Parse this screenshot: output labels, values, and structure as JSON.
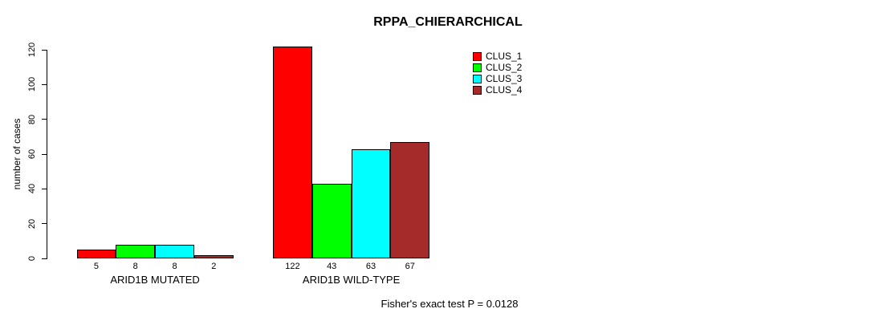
{
  "chart_data": {
    "type": "bar",
    "title": "RPPA_CHIERARCHICAL",
    "xlabel": "",
    "ylabel": "number of cases",
    "categories": [
      "ARID1B MUTATED",
      "ARID1B WILD-TYPE"
    ],
    "series": [
      {
        "name": "CLUS_1",
        "color": "#ff0000",
        "values": [
          5,
          122
        ]
      },
      {
        "name": "CLUS_2",
        "color": "#00ff00",
        "values": [
          8,
          43
        ]
      },
      {
        "name": "CLUS_3",
        "color": "#00ffff",
        "values": [
          8,
          63
        ]
      },
      {
        "name": "CLUS_4",
        "color": "#a52a2a",
        "values": [
          2,
          67
        ]
      }
    ],
    "y_ticks": [
      0,
      20,
      40,
      60,
      80,
      100,
      120
    ],
    "ylim": [
      0,
      130
    ],
    "grid": false,
    "bar_value_labels_shown": true,
    "legend_position": "top-right",
    "annotation": "Fisher's exact test P = 0.0128"
  }
}
